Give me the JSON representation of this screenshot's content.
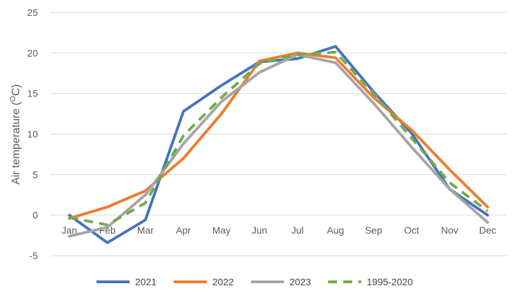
{
  "chart_data": {
    "type": "line",
    "categories": [
      "Jan",
      "Feb",
      "Mar",
      "Apr",
      "May",
      "Jun",
      "Jul",
      "Aug",
      "Sep",
      "Oct",
      "Nov",
      "Dec"
    ],
    "ylabel": "Air temperature (",
    "ylabel_sup": "O",
    "ylabel_unit": "C)",
    "ylim": [
      -5,
      25
    ],
    "yticks": [
      "-5",
      "0",
      "5",
      "10",
      "15",
      "20",
      "25"
    ],
    "grid": true,
    "legend_position": "bottom",
    "series": [
      {
        "name": "2021",
        "color": "#4472c4",
        "dashed": false,
        "values": [
          0.0,
          -3.4,
          -0.6,
          12.8,
          16.0,
          18.9,
          19.3,
          20.8,
          15.2,
          10.1,
          3.2,
          0.0
        ]
      },
      {
        "name": "2022",
        "color": "#ed7d31",
        "dashed": false,
        "values": [
          -0.4,
          1.0,
          3.0,
          7.0,
          12.5,
          19.0,
          20.0,
          19.4,
          14.5,
          10.5,
          5.6,
          1.0
        ]
      },
      {
        "name": "2023",
        "color": "#a5a5a5",
        "dashed": false,
        "values": [
          -2.6,
          -1.5,
          2.5,
          8.8,
          14.0,
          17.6,
          19.8,
          18.8,
          13.8,
          8.4,
          3.2,
          -0.9
        ]
      },
      {
        "name": "1995-2020",
        "color": "#70ad47",
        "dashed": true,
        "values": [
          -0.3,
          -1.2,
          1.5,
          9.8,
          14.5,
          18.7,
          19.8,
          20.1,
          15.0,
          9.5,
          4.0,
          0.5
        ]
      }
    ]
  }
}
